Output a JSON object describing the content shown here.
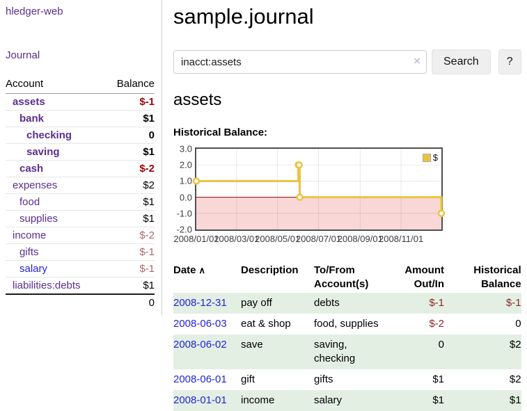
{
  "sidebar": {
    "app_title": "hledger-web",
    "nav_journal": "Journal",
    "table": {
      "account_header": "Account",
      "balance_header": "Balance"
    },
    "accounts": [
      {
        "name": "assets",
        "depth": 1,
        "bold": true,
        "balance": "$-1",
        "balance_style": "neg-strong"
      },
      {
        "name": "bank",
        "depth": 2,
        "bold": true,
        "balance": "$1",
        "balance_style": "strong"
      },
      {
        "name": "checking",
        "depth": 3,
        "bold": true,
        "balance": "0",
        "balance_style": "strong"
      },
      {
        "name": "saving",
        "depth": 3,
        "bold": true,
        "balance": "$1",
        "balance_style": "strong"
      },
      {
        "name": "cash",
        "depth": 2,
        "bold": true,
        "balance": "$-2",
        "balance_style": "neg-strong"
      },
      {
        "name": "expenses",
        "depth": 1,
        "bold": false,
        "balance": "$2",
        "balance_style": "plain"
      },
      {
        "name": "food",
        "depth": 2,
        "bold": false,
        "balance": "$1",
        "balance_style": "plain"
      },
      {
        "name": "supplies",
        "depth": 2,
        "bold": false,
        "balance": "$1",
        "balance_style": "plain"
      },
      {
        "name": "income",
        "depth": 1,
        "bold": false,
        "balance": "$-2",
        "balance_style": "neg-muted"
      },
      {
        "name": "gifts",
        "depth": 2,
        "bold": false,
        "balance": "$-1",
        "balance_style": "neg-muted"
      },
      {
        "name": "salary",
        "depth": 2,
        "bold": false,
        "balance": "$-1",
        "balance_style": "neg-muted",
        "unvisited": true
      },
      {
        "name": "liabilities:debts",
        "depth": 1,
        "bold": false,
        "balance": "$1",
        "balance_style": "plain"
      }
    ],
    "total": "0"
  },
  "header": {
    "title": "sample.journal"
  },
  "search": {
    "value": "inacct:assets",
    "clear_icon": "×",
    "button_label": "Search",
    "help_label": "?"
  },
  "section": {
    "heading": "assets"
  },
  "chart_data": {
    "type": "line",
    "title": "Historical Balance:",
    "line_style": "steps",
    "series": [
      {
        "name": "$",
        "color": "#edc240",
        "points": [
          [
            "2008-01-01",
            1
          ],
          [
            "2008-06-01",
            2
          ],
          [
            "2008-06-02",
            2
          ],
          [
            "2008-06-03",
            0
          ],
          [
            "2008-12-31",
            -1
          ]
        ]
      }
    ],
    "x_ticks": [
      "2008/01/01",
      "2008/03/01",
      "2008/05/01",
      "2008/07/01",
      "2008/09/01",
      "2008/11/01"
    ],
    "y_ticks": [
      3.0,
      2.0,
      1.0,
      0.0,
      -1.0,
      -2.0
    ],
    "ylim": [
      -2,
      3
    ],
    "xlim": [
      "2008-01-01",
      "2008-12-31"
    ],
    "grid": true,
    "legend_position": "top-right",
    "negative_region_color": "#f9d7d7",
    "zero_line_color": "#8b0000"
  },
  "register": {
    "sort_icon": "∧",
    "columns": [
      "Date",
      "Description",
      "To/From Account(s)",
      "Amount Out/In",
      "Historical Balance"
    ],
    "rows": [
      {
        "date": "2008-12-31",
        "description": "pay off",
        "accounts": "debts",
        "amount": "$-1",
        "balance": "$-1"
      },
      {
        "date": "2008-06-03",
        "description": "eat & shop",
        "accounts": "food, supplies",
        "amount": "$-2",
        "balance": "0"
      },
      {
        "date": "2008-06-02",
        "description": "save",
        "accounts": "saving, checking",
        "amount": "0",
        "balance": "$2"
      },
      {
        "date": "2008-06-01",
        "description": "gift",
        "accounts": "gifts",
        "amount": "$1",
        "balance": "$2"
      },
      {
        "date": "2008-01-01",
        "description": "income",
        "accounts": "salary",
        "amount": "$1",
        "balance": "$1"
      }
    ]
  },
  "colors": {
    "link_purple": "#5c2d91",
    "link_blue": "#2323dd",
    "negative_strong": "#a40000",
    "negative_muted": "#b06a6a",
    "negative_table": "#8f2727",
    "row_stripe_green": "#e3efe3",
    "chart_gold": "#edc240",
    "chart_negative_fill": "#f9d7d7",
    "chart_zero_line": "#8b0000"
  }
}
